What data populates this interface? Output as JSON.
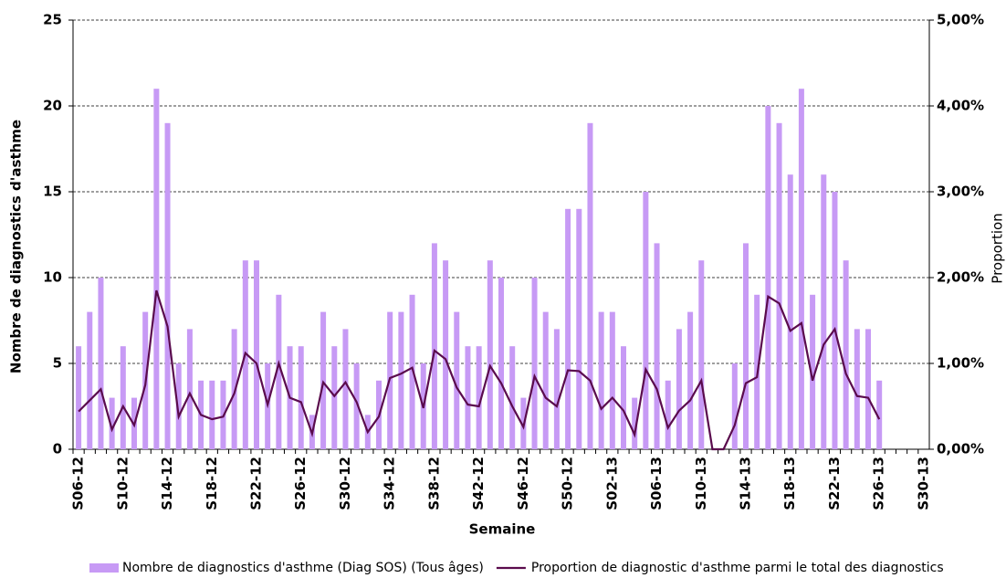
{
  "chart_data": {
    "type": "bar-line",
    "x_label": "Semaine",
    "y_label": "Nombre de diagnostics d'asthme",
    "y2_label": "Proportion",
    "categories": [
      "S06-12",
      null,
      null,
      null,
      "S10-12",
      null,
      null,
      null,
      "S14-12",
      null,
      null,
      null,
      "S18-12",
      null,
      null,
      null,
      "S22-12",
      null,
      null,
      null,
      "S26-12",
      null,
      null,
      null,
      "S30-12",
      null,
      null,
      null,
      "S34-12",
      null,
      null,
      null,
      "S38-12",
      null,
      null,
      null,
      "S42-12",
      null,
      null,
      null,
      "S46-12",
      null,
      null,
      null,
      "S50-12",
      null,
      null,
      null,
      "S02-13",
      null,
      null,
      null,
      "S06-13",
      null,
      null,
      null,
      "S10-13",
      null,
      null,
      null,
      "S14-13",
      null,
      null,
      null,
      "S18-13",
      null,
      null,
      null,
      "S22-13",
      null,
      null,
      null,
      "S26-13",
      null,
      null,
      null,
      "S30-13"
    ],
    "series": [
      {
        "name": "Nombre de diagnostics d'asthme (Diag SOS) (Tous âges)",
        "color": "#c79af5",
        "kind": "bar",
        "values": [
          6,
          8,
          10,
          3,
          6,
          3,
          8,
          21,
          19,
          5,
          7,
          4,
          4,
          4,
          7,
          11,
          11,
          5,
          9,
          6,
          6,
          2,
          8,
          6,
          7,
          5,
          2,
          4,
          8,
          8,
          9,
          5,
          12,
          11,
          8,
          6,
          6,
          11,
          10,
          6,
          3,
          10,
          8,
          7,
          14,
          14,
          19,
          8,
          8,
          6,
          3,
          15,
          12,
          4,
          7,
          8,
          11,
          0,
          0,
          5,
          12,
          9,
          20,
          19,
          16,
          21,
          9,
          16,
          15,
          11,
          7,
          7,
          4,
          null,
          null,
          null,
          null
        ]
      },
      {
        "name": "Proportion de diagnostic d'asthme parmi le total des diagnostics",
        "color": "#5a0b4d",
        "kind": "line",
        "axis": "y2",
        "values": [
          0.44,
          0.57,
          0.7,
          0.23,
          0.5,
          0.28,
          0.75,
          1.85,
          1.43,
          0.38,
          0.65,
          0.4,
          0.35,
          0.38,
          0.65,
          1.12,
          1.0,
          0.52,
          1.0,
          0.6,
          0.55,
          0.18,
          0.78,
          0.62,
          0.78,
          0.55,
          0.2,
          0.38,
          0.83,
          0.88,
          0.95,
          0.48,
          1.15,
          1.05,
          0.72,
          0.52,
          0.5,
          0.97,
          0.77,
          0.5,
          0.26,
          0.85,
          0.6,
          0.5,
          0.92,
          0.91,
          0.8,
          0.47,
          0.6,
          0.45,
          0.17,
          0.93,
          0.7,
          0.25,
          0.45,
          0.57,
          0.8,
          0,
          0,
          0.28,
          0.77,
          0.84,
          1.78,
          1.7,
          1.38,
          1.47,
          0.8,
          1.22,
          1.4,
          0.88,
          0.62,
          0.6,
          0.35,
          null,
          null,
          null,
          null
        ]
      }
    ],
    "ylim": [
      0,
      25
    ],
    "yticks": [
      0,
      5,
      10,
      15,
      20,
      25
    ],
    "y2lim": [
      0,
      5
    ],
    "y2ticks": [
      {
        "value": 0,
        "label": "0,00%"
      },
      {
        "value": 1,
        "label": "1,00%"
      },
      {
        "value": 2,
        "label": "2,00%"
      },
      {
        "value": 3,
        "label": "3,00%"
      },
      {
        "value": 4,
        "label": "4,00%"
      },
      {
        "value": 5,
        "label": "5,00%"
      }
    ],
    "grid": true,
    "legend": "bottom"
  }
}
